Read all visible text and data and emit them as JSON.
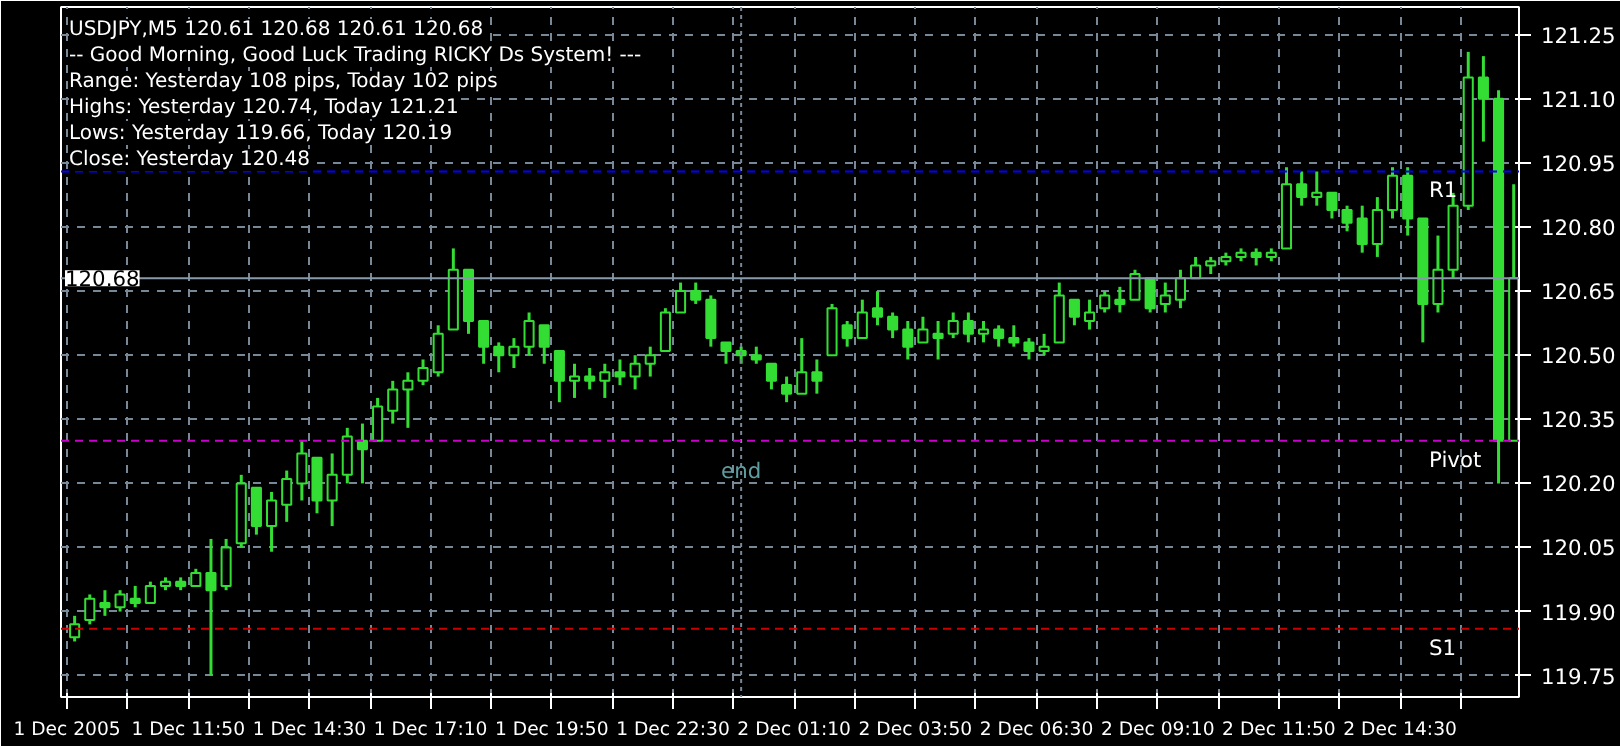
{
  "chart_data": {
    "type": "candlestick",
    "title": "USDJPY,M5  120.61 120.68 120.61 120.68",
    "annotations": [
      "-- Good Morning, Good Luck Trading RICKY Ds System! ---",
      "Range: Yesterday 108 pips, Today 102 pips",
      "Highs: Yesterday 120.74, Today 121.21",
      "Lows:  Yesterday 119.66, Today 120.19",
      "Close: Yesterday 120.48",
      {
        "text": "end",
        "x": "2005-12-02T00:00",
        "y": 120.23
      }
    ],
    "color": "#33dd33",
    "x": [
      "2005-12-01T09:20",
      "2005-12-01T09:40",
      "2005-12-01T10:00",
      "2005-12-01T10:20",
      "2005-12-01T10:40",
      "2005-12-01T11:00",
      "2005-12-01T11:20",
      "2005-12-01T11:40",
      "2005-12-01T12:00",
      "2005-12-01T12:20",
      "2005-12-01T12:40",
      "2005-12-01T13:00",
      "2005-12-01T13:20",
      "2005-12-01T13:40",
      "2005-12-01T14:00",
      "2005-12-01T14:20",
      "2005-12-01T14:40",
      "2005-12-01T15:00",
      "2005-12-01T15:20",
      "2005-12-01T15:40",
      "2005-12-01T16:00",
      "2005-12-01T16:20",
      "2005-12-01T16:40",
      "2005-12-01T17:00",
      "2005-12-01T17:20",
      "2005-12-01T17:40",
      "2005-12-01T18:00",
      "2005-12-01T18:20",
      "2005-12-01T18:40",
      "2005-12-01T19:00",
      "2005-12-01T19:20",
      "2005-12-01T19:40",
      "2005-12-01T20:00",
      "2005-12-01T20:20",
      "2005-12-01T20:40",
      "2005-12-01T21:00",
      "2005-12-01T21:20",
      "2005-12-01T21:40",
      "2005-12-01T22:00",
      "2005-12-01T22:20",
      "2005-12-01T22:40",
      "2005-12-01T23:00",
      "2005-12-01T23:20",
      "2005-12-01T23:40",
      "2005-12-02T00:00",
      "2005-12-02T00:20",
      "2005-12-02T00:40",
      "2005-12-02T01:00",
      "2005-12-02T01:20",
      "2005-12-02T01:40",
      "2005-12-02T02:00",
      "2005-12-02T02:20",
      "2005-12-02T02:40",
      "2005-12-02T03:00",
      "2005-12-02T03:20",
      "2005-12-02T03:40",
      "2005-12-02T04:00",
      "2005-12-02T04:20",
      "2005-12-02T04:40",
      "2005-12-02T05:00",
      "2005-12-02T05:20",
      "2005-12-02T05:40",
      "2005-12-02T06:00",
      "2005-12-02T06:20",
      "2005-12-02T06:40",
      "2005-12-02T07:00",
      "2005-12-02T07:20",
      "2005-12-02T07:40",
      "2005-12-02T08:00",
      "2005-12-02T08:20",
      "2005-12-02T08:40",
      "2005-12-02T09:00",
      "2005-12-02T09:20",
      "2005-12-02T09:40",
      "2005-12-02T10:00",
      "2005-12-02T10:20",
      "2005-12-02T10:40",
      "2005-12-02T11:00",
      "2005-12-02T11:20",
      "2005-12-02T11:40",
      "2005-12-02T12:00",
      "2005-12-02T12:20",
      "2005-12-02T12:40",
      "2005-12-02T13:00",
      "2005-12-02T13:20",
      "2005-12-02T13:40",
      "2005-12-02T14:00",
      "2005-12-02T14:20",
      "2005-12-02T14:40",
      "2005-12-02T15:00",
      "2005-12-02T15:20",
      "2005-12-02T15:40",
      "2005-12-02T16:00",
      "2005-12-02T16:20",
      "2005-12-02T16:40",
      "2005-12-02T17:00"
    ],
    "ohlc": [
      [
        119.84,
        119.89,
        119.83,
        119.87
      ],
      [
        119.88,
        119.94,
        119.87,
        119.93
      ],
      [
        119.92,
        119.95,
        119.89,
        119.91
      ],
      [
        119.91,
        119.95,
        119.9,
        119.94
      ],
      [
        119.93,
        119.96,
        119.91,
        119.92
      ],
      [
        119.92,
        119.97,
        119.92,
        119.96
      ],
      [
        119.96,
        119.98,
        119.95,
        119.97
      ],
      [
        119.97,
        119.98,
        119.95,
        119.96
      ],
      [
        119.96,
        120.0,
        119.96,
        119.99
      ],
      [
        119.99,
        120.07,
        119.75,
        119.95
      ],
      [
        119.96,
        120.07,
        119.95,
        120.05
      ],
      [
        120.06,
        120.22,
        120.05,
        120.2
      ],
      [
        120.19,
        120.19,
        120.08,
        120.1
      ],
      [
        120.1,
        120.18,
        120.04,
        120.16
      ],
      [
        120.15,
        120.23,
        120.11,
        120.21
      ],
      [
        120.2,
        120.3,
        120.16,
        120.27
      ],
      [
        120.26,
        120.26,
        120.13,
        120.16
      ],
      [
        120.16,
        120.27,
        120.1,
        120.22
      ],
      [
        120.22,
        120.33,
        120.2,
        120.31
      ],
      [
        120.3,
        120.34,
        120.2,
        120.28
      ],
      [
        120.3,
        120.4,
        120.3,
        120.38
      ],
      [
        120.37,
        120.44,
        120.34,
        120.42
      ],
      [
        120.42,
        120.46,
        120.33,
        120.44
      ],
      [
        120.44,
        120.49,
        120.43,
        120.47
      ],
      [
        120.46,
        120.57,
        120.45,
        120.55
      ],
      [
        120.56,
        120.75,
        120.56,
        120.7
      ],
      [
        120.7,
        120.7,
        120.55,
        120.58
      ],
      [
        120.58,
        120.58,
        120.48,
        120.52
      ],
      [
        120.52,
        120.53,
        120.46,
        120.5
      ],
      [
        120.5,
        120.54,
        120.47,
        120.52
      ],
      [
        120.52,
        120.6,
        120.5,
        120.58
      ],
      [
        120.57,
        120.57,
        120.48,
        120.52
      ],
      [
        120.51,
        120.51,
        120.39,
        120.44
      ],
      [
        120.44,
        120.48,
        120.4,
        120.45
      ],
      [
        120.45,
        120.47,
        120.42,
        120.44
      ],
      [
        120.44,
        120.48,
        120.4,
        120.46
      ],
      [
        120.46,
        120.49,
        120.43,
        120.45
      ],
      [
        120.45,
        120.5,
        120.42,
        120.48
      ],
      [
        120.48,
        120.52,
        120.45,
        120.5
      ],
      [
        120.51,
        120.61,
        120.51,
        120.6
      ],
      [
        120.6,
        120.67,
        120.6,
        120.65
      ],
      [
        120.65,
        120.67,
        120.62,
        120.63
      ],
      [
        120.63,
        120.64,
        120.52,
        120.54
      ],
      [
        120.53,
        120.53,
        120.48,
        120.51
      ],
      [
        120.51,
        120.52,
        120.48,
        120.5
      ],
      [
        120.5,
        120.52,
        120.48,
        120.49
      ],
      [
        120.48,
        120.48,
        120.42,
        120.44
      ],
      [
        120.43,
        120.45,
        120.39,
        120.41
      ],
      [
        120.41,
        120.54,
        120.41,
        120.46
      ],
      [
        120.46,
        120.49,
        120.41,
        120.44
      ],
      [
        120.5,
        120.62,
        120.5,
        120.61
      ],
      [
        120.57,
        120.58,
        120.52,
        120.54
      ],
      [
        120.54,
        120.63,
        120.54,
        120.6
      ],
      [
        120.61,
        120.65,
        120.57,
        120.59
      ],
      [
        120.59,
        120.6,
        120.54,
        120.56
      ],
      [
        120.56,
        120.58,
        120.49,
        120.52
      ],
      [
        120.53,
        120.59,
        120.53,
        120.56
      ],
      [
        120.55,
        120.58,
        120.49,
        120.54
      ],
      [
        120.55,
        120.6,
        120.54,
        120.58
      ],
      [
        120.58,
        120.6,
        120.53,
        120.55
      ],
      [
        120.55,
        120.58,
        120.53,
        120.56
      ],
      [
        120.56,
        120.57,
        120.52,
        120.54
      ],
      [
        120.54,
        120.57,
        120.52,
        120.53
      ],
      [
        120.53,
        120.54,
        120.49,
        120.51
      ],
      [
        120.51,
        120.55,
        120.5,
        120.52
      ],
      [
        120.53,
        120.67,
        120.53,
        120.64
      ],
      [
        120.63,
        120.63,
        120.57,
        120.59
      ],
      [
        120.58,
        120.63,
        120.56,
        120.6
      ],
      [
        120.61,
        120.65,
        120.6,
        120.64
      ],
      [
        120.63,
        120.66,
        120.6,
        120.62
      ],
      [
        120.63,
        120.7,
        120.63,
        120.69
      ],
      [
        120.68,
        120.68,
        120.6,
        120.61
      ],
      [
        120.62,
        120.67,
        120.6,
        120.64
      ],
      [
        120.63,
        120.7,
        120.61,
        120.68
      ],
      [
        120.68,
        120.73,
        120.68,
        120.71
      ],
      [
        120.71,
        120.73,
        120.69,
        120.72
      ],
      [
        120.72,
        120.74,
        120.71,
        120.73
      ],
      [
        120.73,
        120.75,
        120.72,
        120.74
      ],
      [
        120.74,
        120.75,
        120.71,
        120.73
      ],
      [
        120.73,
        120.75,
        120.72,
        120.74
      ],
      [
        120.75,
        120.94,
        120.75,
        120.9
      ],
      [
        120.9,
        120.93,
        120.85,
        120.87
      ],
      [
        120.87,
        120.93,
        120.85,
        120.88
      ],
      [
        120.88,
        120.88,
        120.82,
        120.84
      ],
      [
        120.84,
        120.85,
        120.79,
        120.81
      ],
      [
        120.82,
        120.85,
        120.74,
        120.76
      ],
      [
        120.76,
        120.87,
        120.73,
        120.84
      ],
      [
        120.84,
        120.94,
        120.82,
        120.92
      ],
      [
        120.92,
        120.94,
        120.78,
        120.82
      ],
      [
        120.82,
        120.82,
        120.53,
        120.62
      ],
      [
        120.62,
        120.78,
        120.6,
        120.7
      ],
      [
        120.7,
        120.88,
        120.68,
        120.85
      ],
      [
        120.85,
        121.21,
        120.84,
        121.15
      ],
      [
        121.15,
        121.2,
        121.0,
        121.1
      ],
      [
        121.1,
        121.12,
        120.2,
        120.3
      ],
      [
        120.3,
        120.9,
        120.3,
        120.68
      ]
    ],
    "xlim": [
      "2005-12-01T09:02",
      "2005-12-02T17:07"
    ],
    "xticks": [
      {
        "value": "2005-12-01T09:10",
        "label": "1 Dec 2005"
      },
      {
        "value": "2005-12-01T10:30",
        "label": null
      },
      {
        "value": "2005-12-01T11:50",
        "label": "1 Dec 11:50"
      },
      {
        "value": "2005-12-01T13:10",
        "label": null
      },
      {
        "value": "2005-12-01T14:30",
        "label": "1 Dec 14:30"
      },
      {
        "value": "2005-12-01T15:50",
        "label": null
      },
      {
        "value": "2005-12-01T17:10",
        "label": "1 Dec 17:10"
      },
      {
        "value": "2005-12-01T18:30",
        "label": null
      },
      {
        "value": "2005-12-01T19:50",
        "label": "1 Dec 19:50"
      },
      {
        "value": "2005-12-01T21:10",
        "label": null
      },
      {
        "value": "2005-12-01T22:30",
        "label": "1 Dec 22:30"
      },
      {
        "value": "2005-12-01T23:50",
        "label": null
      },
      {
        "value": "2005-12-02T01:10",
        "label": "2 Dec 01:10"
      },
      {
        "value": "2005-12-02T02:30",
        "label": null
      },
      {
        "value": "2005-12-02T03:50",
        "label": "2 Dec 03:50"
      },
      {
        "value": "2005-12-02T05:10",
        "label": null
      },
      {
        "value": "2005-12-02T06:30",
        "label": "2 Dec 06:30"
      },
      {
        "value": "2005-12-02T07:50",
        "label": null
      },
      {
        "value": "2005-12-02T09:10",
        "label": "2 Dec 09:10"
      },
      {
        "value": "2005-12-02T10:30",
        "label": null
      },
      {
        "value": "2005-12-02T11:50",
        "label": "2 Dec 11:50"
      },
      {
        "value": "2005-12-02T13:10",
        "label": null
      },
      {
        "value": "2005-12-02T14:30",
        "label": "2 Dec 14:30"
      },
      {
        "value": "2005-12-02T15:50",
        "label": null
      }
    ],
    "ylim": [
      119.7,
      121.315
    ],
    "yticks": [
      119.75,
      {
        "value": 119.9,
        "label": "119.90"
      },
      120.05,
      {
        "value": 120.2,
        "label": "120.20"
      },
      120.35,
      {
        "value": 120.5,
        "label": "120.50"
      },
      120.65,
      {
        "value": 120.8,
        "label": "120.80"
      },
      120.95,
      {
        "value": 121.1,
        "label": "121.10"
      },
      121.25
    ],
    "ref_lines": [
      {
        "axis": "x",
        "value": "2005-12-02T00:00",
        "color": "#778899",
        "line_style": "dotted"
      },
      {
        "axis": "y",
        "value": 120.93,
        "label": "R1",
        "color": "#0000ff",
        "line_style": "dashed"
      },
      {
        "axis": "y",
        "value": 120.3,
        "label": "Pivot",
        "color": "#cc00cc",
        "line_style": "dashed"
      },
      {
        "axis": "y",
        "value": 119.86,
        "label": "S1",
        "color": "#cc0000",
        "line_style": "dashed"
      },
      {
        "axis": "y",
        "value": 120.68,
        "label": "120.68",
        "color": "#8899aa",
        "line_style": "solid"
      }
    ],
    "grid": true
  }
}
